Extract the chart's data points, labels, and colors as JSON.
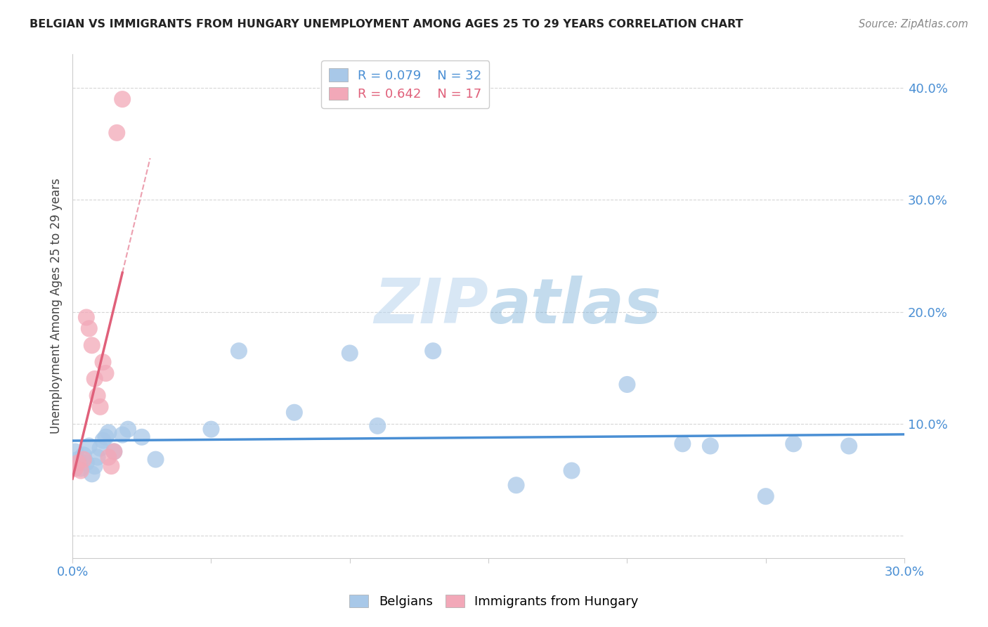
{
  "title": "BELGIAN VS IMMIGRANTS FROM HUNGARY UNEMPLOYMENT AMONG AGES 25 TO 29 YEARS CORRELATION CHART",
  "source": "Source: ZipAtlas.com",
  "ylabel": "Unemployment Among Ages 25 to 29 years",
  "xlim": [
    0.0,
    0.3
  ],
  "ylim": [
    -0.02,
    0.43
  ],
  "xticks": [
    0.0,
    0.05,
    0.1,
    0.15,
    0.2,
    0.25,
    0.3
  ],
  "xtick_labels": [
    "0.0%",
    "",
    "",
    "",
    "",
    "",
    "30.0%"
  ],
  "yticks": [
    0.0,
    0.1,
    0.2,
    0.3,
    0.4
  ],
  "ytick_labels_right": [
    "",
    "10.0%",
    "20.0%",
    "30.0%",
    "40.0%"
  ],
  "belgian_color": "#a8c8e8",
  "hungary_color": "#f2a8b8",
  "belgian_line_color": "#4a8fd4",
  "hungary_line_color": "#e0607a",
  "legend_belgian_R": "R = 0.079",
  "legend_belgian_N": "N = 32",
  "legend_hungary_R": "R = 0.642",
  "legend_hungary_N": "N = 17",
  "belgian_x": [
    0.001,
    0.002,
    0.003,
    0.004,
    0.005,
    0.006,
    0.007,
    0.008,
    0.009,
    0.01,
    0.011,
    0.012,
    0.013,
    0.015,
    0.018,
    0.02,
    0.025,
    0.03,
    0.05,
    0.06,
    0.08,
    0.1,
    0.11,
    0.13,
    0.16,
    0.18,
    0.2,
    0.22,
    0.23,
    0.25,
    0.26,
    0.28
  ],
  "belgian_y": [
    0.075,
    0.068,
    0.06,
    0.072,
    0.065,
    0.08,
    0.055,
    0.062,
    0.07,
    0.078,
    0.085,
    0.088,
    0.092,
    0.075,
    0.09,
    0.095,
    0.088,
    0.068,
    0.095,
    0.165,
    0.11,
    0.163,
    0.098,
    0.165,
    0.045,
    0.058,
    0.135,
    0.082,
    0.08,
    0.035,
    0.082,
    0.08
  ],
  "hungary_x": [
    0.001,
    0.002,
    0.003,
    0.004,
    0.005,
    0.006,
    0.007,
    0.008,
    0.009,
    0.01,
    0.011,
    0.012,
    0.013,
    0.014,
    0.015,
    0.016,
    0.018
  ],
  "hungary_y": [
    0.06,
    0.065,
    0.058,
    0.068,
    0.195,
    0.185,
    0.17,
    0.14,
    0.125,
    0.115,
    0.155,
    0.145,
    0.07,
    0.062,
    0.075,
    0.36,
    0.39
  ],
  "watermark_zip": "ZIP",
  "watermark_atlas": "atlas",
  "background_color": "#ffffff",
  "grid_color": "#cccccc"
}
